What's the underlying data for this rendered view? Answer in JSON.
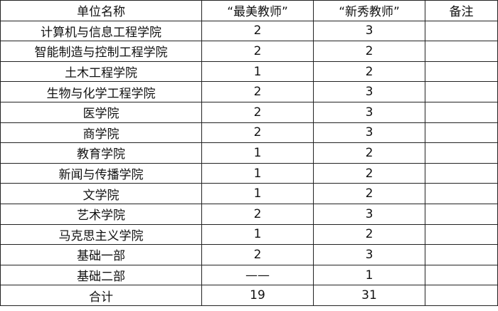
{
  "headers": [
    "单位名称",
    "“最美教师”",
    "“新秀教师”",
    "备注"
  ],
  "rows": [
    {
      "unit": "计算机与信息工程学院",
      "best": "2",
      "new": "3",
      "note": ""
    },
    {
      "unit": "智能制造与控制工程学院",
      "best": "2",
      "new": "2",
      "note": ""
    },
    {
      "unit": "土木工程学院",
      "best": "1",
      "new": "2",
      "note": ""
    },
    {
      "unit": "生物与化学工程学院",
      "best": "2",
      "new": "3",
      "note": ""
    },
    {
      "unit": "医学院",
      "best": "2",
      "new": "3",
      "note": ""
    },
    {
      "unit": "商学院",
      "best": "2",
      "new": "3",
      "note": ""
    },
    {
      "unit": "教育学院",
      "best": "1",
      "new": "2",
      "note": ""
    },
    {
      "unit": "新闻与传播学院",
      "best": "1",
      "new": "2",
      "note": ""
    },
    {
      "unit": "文学院",
      "best": "1",
      "new": "2",
      "note": ""
    },
    {
      "unit": "艺术学院",
      "best": "2",
      "new": "3",
      "note": ""
    },
    {
      "unit": "马克思主义学院",
      "best": "1",
      "new": "2",
      "note": ""
    },
    {
      "unit": "基础一部",
      "best": "2",
      "new": "3",
      "note": ""
    },
    {
      "unit": "基础二部",
      "best": "——",
      "new": "1",
      "note": ""
    }
  ],
  "total": {
    "unit": "合计",
    "best": "19",
    "new": "31",
    "note": ""
  }
}
